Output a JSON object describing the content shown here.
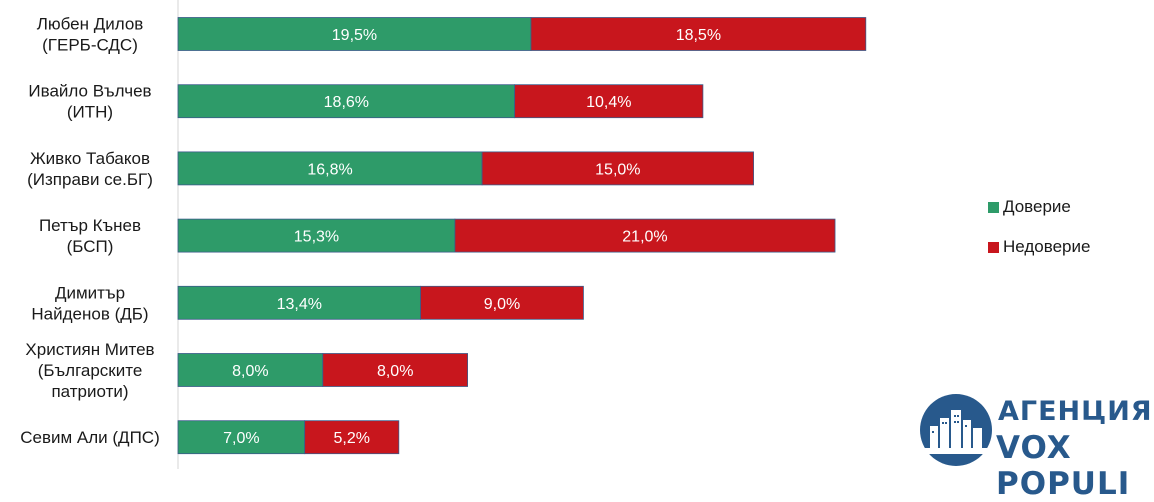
{
  "chart_data": {
    "type": "bar",
    "orientation": "horizontal",
    "stacked": true,
    "categories": [
      [
        "Любен Дилов",
        "(ГЕРБ-СДС)"
      ],
      [
        "Ивайло Вълчев",
        "(ИТН)"
      ],
      [
        "Живко Табаков",
        "(Изправи се.БГ)"
      ],
      [
        "Петър Кънев",
        "(БСП)"
      ],
      [
        "Димитър",
        "Найденов (ДБ)"
      ],
      [
        "Християн Митев",
        "(Българските",
        "патриоти)"
      ],
      [
        "Севим Али (ДПС)"
      ]
    ],
    "series": [
      {
        "name": "Доверие",
        "color": "#2e9b69",
        "values": [
          19.5,
          18.6,
          16.8,
          15.3,
          13.4,
          8.0,
          7.0
        ],
        "labels": [
          "19,5%",
          "18,6%",
          "16,8%",
          "15,3%",
          "13,4%",
          "8,0%",
          "7,0%"
        ]
      },
      {
        "name": "Недоверие",
        "color": "#c8161d",
        "values": [
          18.5,
          10.4,
          15.0,
          21.0,
          9.0,
          8.0,
          5.2
        ],
        "labels": [
          "18,5%",
          "10,4%",
          "15,0%",
          "21,0%",
          "9,0%",
          "8,0%",
          "5,2%"
        ]
      }
    ],
    "xlim": [
      0,
      40
    ],
    "grid": false,
    "legend_position": "right"
  },
  "logo": {
    "line1": "АГЕНЦИЯ",
    "line2": "VOX POPULI",
    "color": "#28598c"
  }
}
